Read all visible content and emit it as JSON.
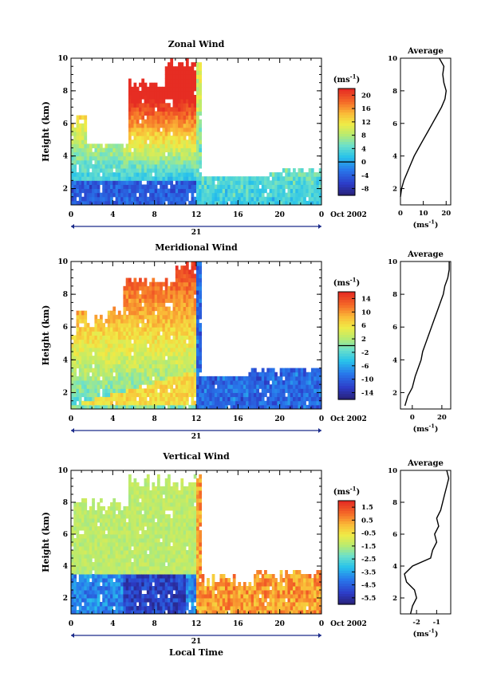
{
  "figure": {
    "date_label": "Oct 2002",
    "day_label": "21",
    "xlabel_bottom": "Local Time",
    "x_ticks": [
      "0",
      "4",
      "8",
      "12",
      "16",
      "20",
      "0"
    ]
  },
  "chart_data": [
    {
      "type": "heatmap",
      "title": "Zonal Wind",
      "ylabel": "Height (km)",
      "ylim": [
        1,
        10
      ],
      "y_ticks": [
        "2",
        "4",
        "6",
        "8",
        "10"
      ],
      "xlim_hours": [
        0,
        24
      ],
      "colorbar": {
        "unit": "(ms",
        "unit_sup": "-1",
        "unit_close": ")",
        "ticks": [
          "20",
          "16",
          "12",
          "8",
          "4",
          "0",
          "-4",
          "-8"
        ],
        "range": [
          -10,
          22
        ],
        "contour_level": 0
      },
      "average_panel": {
        "title": "Average",
        "x_ticks": [
          "0",
          "10",
          "20"
        ],
        "xlabel": "(ms",
        "xlabel_sup": "-1",
        "xlabel_close": ")",
        "xlim": [
          0,
          22
        ],
        "y_ticks": [
          "2",
          "4",
          "6",
          "8",
          "10"
        ],
        "profile": [
          [
            0,
            1.5
          ],
          [
            0.5,
            2.0
          ],
          [
            1.5,
            2.5
          ],
          [
            3,
            3.0
          ],
          [
            4.5,
            3.5
          ],
          [
            6,
            4.0
          ],
          [
            8,
            4.5
          ],
          [
            10,
            5.0
          ],
          [
            12,
            5.5
          ],
          [
            14,
            6.0
          ],
          [
            16,
            6.5
          ],
          [
            18,
            7.0
          ],
          [
            19.5,
            7.5
          ],
          [
            20,
            8.0
          ],
          [
            19,
            8.5
          ],
          [
            18.5,
            9.0
          ],
          [
            19,
            9.5
          ],
          [
            17,
            10.0
          ]
        ]
      }
    },
    {
      "type": "heatmap",
      "title": "Meridional Wind",
      "ylabel": "Height (km)",
      "ylim": [
        1,
        10
      ],
      "y_ticks": [
        "2",
        "4",
        "6",
        "8",
        "10"
      ],
      "xlim_hours": [
        0,
        24
      ],
      "colorbar": {
        "unit": "(ms",
        "unit_sup": "-1",
        "unit_close": ")",
        "ticks": [
          "14",
          "10",
          "6",
          "2",
          "-2",
          "-6",
          "-10",
          "-14"
        ],
        "range": [
          -16,
          16
        ],
        "contour_level": 0
      },
      "average_panel": {
        "title": "Average",
        "x_ticks": [
          "0",
          "20"
        ],
        "xlabel": "(ms",
        "xlabel_sup": "-1",
        "xlabel_close": ")",
        "xlim": [
          -8,
          26
        ],
        "y_ticks": [
          "2",
          "4",
          "6",
          "8",
          "10"
        ],
        "profile": [
          [
            -5,
            1.2
          ],
          [
            -3,
            1.8
          ],
          [
            0,
            2.3
          ],
          [
            2,
            3.0
          ],
          [
            4,
            3.5
          ],
          [
            6,
            4.0
          ],
          [
            7,
            4.5
          ],
          [
            9,
            5.0
          ],
          [
            11,
            5.5
          ],
          [
            13,
            6.0
          ],
          [
            15,
            6.5
          ],
          [
            17,
            7.0
          ],
          [
            19,
            7.5
          ],
          [
            21,
            8.0
          ],
          [
            22,
            8.5
          ],
          [
            24,
            9.0
          ],
          [
            25,
            9.5
          ],
          [
            25,
            10.0
          ]
        ]
      }
    },
    {
      "type": "heatmap",
      "title": "Vertical Wind",
      "ylabel": "Height (km)",
      "ylim": [
        1,
        10
      ],
      "y_ticks": [
        "2",
        "4",
        "6",
        "8",
        "10"
      ],
      "xlim_hours": [
        0,
        24
      ],
      "colorbar": {
        "unit": "(ms",
        "unit_sup": "-1",
        "unit_close": ")",
        "ticks": [
          "1.5",
          "0.5",
          "-0.5",
          "-1.5",
          "-2.5",
          "-3.5",
          "-4.5",
          "-5.5"
        ],
        "range": [
          -6,
          2
        ],
        "contour_level": null
      },
      "average_panel": {
        "title": "Average",
        "x_ticks": [
          "-2",
          "-1"
        ],
        "xlabel": "(ms",
        "xlabel_sup": "-1",
        "xlabel_close": ")",
        "xlim": [
          -2.8,
          -0.3
        ],
        "y_ticks": [
          "2",
          "4",
          "6",
          "8",
          "10"
        ],
        "profile": [
          [
            -2.3,
            1.0
          ],
          [
            -2.2,
            1.5
          ],
          [
            -2.0,
            2.0
          ],
          [
            -2.1,
            2.5
          ],
          [
            -2.5,
            3.0
          ],
          [
            -2.6,
            3.5
          ],
          [
            -2.2,
            4.0
          ],
          [
            -1.3,
            4.5
          ],
          [
            -1.2,
            5.0
          ],
          [
            -1.0,
            5.5
          ],
          [
            -1.1,
            6.0
          ],
          [
            -0.9,
            6.5
          ],
          [
            -1.0,
            7.0
          ],
          [
            -0.8,
            7.5
          ],
          [
            -0.7,
            8.0
          ],
          [
            -0.6,
            8.5
          ],
          [
            -0.5,
            9.0
          ],
          [
            -0.4,
            9.5
          ],
          [
            -0.5,
            10.0
          ]
        ]
      }
    }
  ]
}
